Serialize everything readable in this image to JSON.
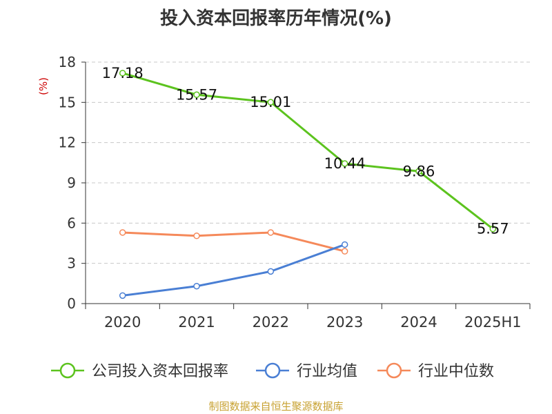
{
  "chart_data": {
    "type": "line",
    "title": "投入资本回报率历年情况(%)",
    "ylabel": "(%)",
    "categories": [
      "2020",
      "2021",
      "2022",
      "2023",
      "2024",
      "2025H1"
    ],
    "ylim": [
      0,
      18
    ],
    "yticks": [
      0,
      3,
      6,
      9,
      12,
      15,
      18
    ],
    "grid": true,
    "legend_position": "bottom",
    "series": [
      {
        "name": "公司投入资本回报率",
        "color": "#5cc31e",
        "values": [
          17.18,
          15.57,
          15.01,
          10.44,
          9.86,
          5.57
        ],
        "show_labels": true
      },
      {
        "name": "行业均值",
        "color": "#4a7fd4",
        "values": [
          0.6,
          1.3,
          2.4,
          4.4,
          null,
          null
        ],
        "show_labels": false
      },
      {
        "name": "行业中位数",
        "color": "#f5895a",
        "values": [
          5.3,
          5.05,
          5.3,
          3.9,
          null,
          null
        ],
        "show_labels": false
      }
    ]
  },
  "source": "制图数据来自恒生聚源数据库"
}
